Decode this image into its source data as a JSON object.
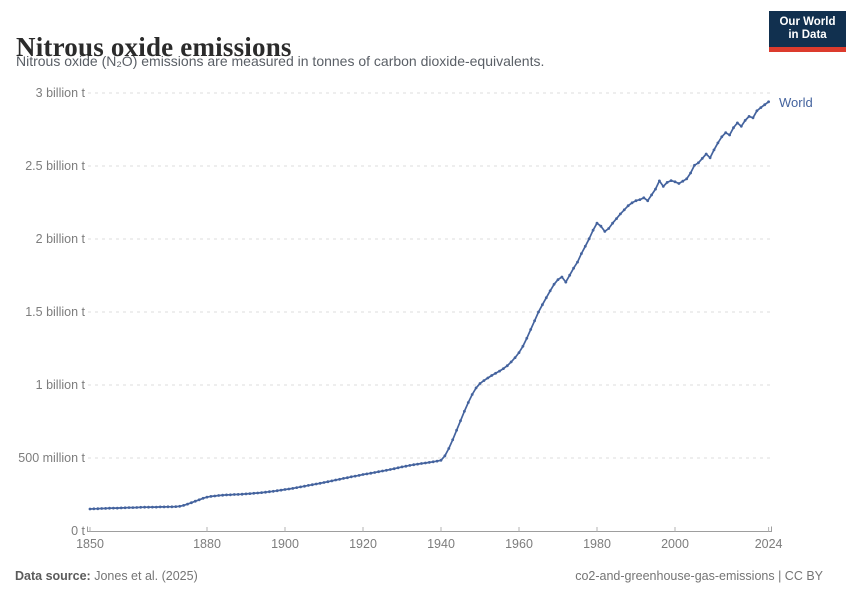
{
  "header": {
    "title": "Nitrous oxide emissions",
    "subtitle": "Nitrous oxide (N₂O) emissions are measured in tonnes of carbon dioxide-equivalents.",
    "logo_line1": "Our World",
    "logo_line2": "in Data"
  },
  "footer": {
    "source_label": "Data source:",
    "source_value": "Jones et al. (2025)",
    "attribution": "co2-and-greenhouse-gas-emissions | CC BY"
  },
  "chart_data": {
    "type": "line",
    "title": "Nitrous oxide emissions",
    "unit": "tonnes of carbon dioxide-equivalents",
    "values_unit": "million tonnes CO2e",
    "xlabel": "",
    "ylabel": "",
    "xlim": [
      1850,
      2024
    ],
    "ylim": [
      0,
      3000
    ],
    "grid": "horizontal dashed",
    "legend_position": "end-of-line label",
    "colors": {
      "line": "#44639e",
      "gridline": "#dedede",
      "axis": "#9e9e9e",
      "tick": "#b3b3b3",
      "tick_label": "#7d7d7d",
      "logo_navy": "#11304f",
      "logo_red": "#dc3b2d"
    },
    "y_ticks": [
      {
        "value": 0,
        "label": "0 t"
      },
      {
        "value": 500,
        "label": "500 million t"
      },
      {
        "value": 1000,
        "label": "1 billion t"
      },
      {
        "value": 1500,
        "label": "1.5 billion t"
      },
      {
        "value": 2000,
        "label": "2 billion t"
      },
      {
        "value": 2500,
        "label": "2.5 billion t"
      },
      {
        "value": 3000,
        "label": "3 billion t"
      }
    ],
    "x_ticks": [
      {
        "value": 1850,
        "label": "1850"
      },
      {
        "value": 1880,
        "label": "1880"
      },
      {
        "value": 1900,
        "label": "1900"
      },
      {
        "value": 1920,
        "label": "1920"
      },
      {
        "value": 1940,
        "label": "1940"
      },
      {
        "value": 1960,
        "label": "1960"
      },
      {
        "value": 1980,
        "label": "1980"
      },
      {
        "value": 2000,
        "label": "2000"
      },
      {
        "value": 2024,
        "label": "2024"
      }
    ],
    "series": [
      {
        "name": "World",
        "color": "#44639e",
        "marker": "dot",
        "years": [
          1850,
          1851,
          1852,
          1853,
          1854,
          1855,
          1856,
          1857,
          1858,
          1859,
          1860,
          1861,
          1862,
          1863,
          1864,
          1865,
          1866,
          1867,
          1868,
          1869,
          1870,
          1871,
          1872,
          1873,
          1874,
          1875,
          1876,
          1877,
          1878,
          1879,
          1880,
          1881,
          1882,
          1883,
          1884,
          1885,
          1886,
          1887,
          1888,
          1889,
          1890,
          1891,
          1892,
          1893,
          1894,
          1895,
          1896,
          1897,
          1898,
          1899,
          1900,
          1901,
          1902,
          1903,
          1904,
          1905,
          1906,
          1907,
          1908,
          1909,
          1910,
          1911,
          1912,
          1913,
          1914,
          1915,
          1916,
          1917,
          1918,
          1919,
          1920,
          1921,
          1922,
          1923,
          1924,
          1925,
          1926,
          1927,
          1928,
          1929,
          1930,
          1931,
          1932,
          1933,
          1934,
          1935,
          1936,
          1937,
          1938,
          1939,
          1940,
          1941,
          1942,
          1943,
          1944,
          1945,
          1946,
          1947,
          1948,
          1949,
          1950,
          1951,
          1952,
          1953,
          1954,
          1955,
          1956,
          1957,
          1958,
          1959,
          1960,
          1961,
          1962,
          1963,
          1964,
          1965,
          1966,
          1967,
          1968,
          1969,
          1970,
          1971,
          1972,
          1973,
          1974,
          1975,
          1976,
          1977,
          1978,
          1979,
          1980,
          1981,
          1982,
          1983,
          1984,
          1985,
          1986,
          1987,
          1988,
          1989,
          1990,
          1991,
          1992,
          1993,
          1994,
          1995,
          1996,
          1997,
          1998,
          1999,
          2000,
          2001,
          2002,
          2003,
          2004,
          2005,
          2006,
          2007,
          2008,
          2009,
          2010,
          2011,
          2012,
          2013,
          2014,
          2015,
          2016,
          2017,
          2018,
          2019,
          2020,
          2021,
          2022,
          2023,
          2024
        ],
        "values_million_t": [
          151,
          152,
          153,
          154,
          155,
          156,
          157,
          157,
          158,
          159,
          160,
          160,
          161,
          162,
          163,
          163,
          164,
          164,
          165,
          165,
          166,
          166,
          167,
          169,
          175,
          184,
          194,
          204,
          214,
          224,
          232,
          237,
          240,
          243,
          245,
          247,
          248,
          250,
          251,
          252,
          254,
          256,
          258,
          260,
          263,
          266,
          269,
          272,
          276,
          280,
          284,
          288,
          292,
          297,
          302,
          307,
          312,
          317,
          322,
          327,
          332,
          338,
          343,
          349,
          354,
          360,
          365,
          371,
          376,
          381,
          387,
          391,
          396,
          401,
          406,
          411,
          416,
          421,
          427,
          433,
          439,
          444,
          449,
          454,
          458,
          462,
          466,
          470,
          474,
          479,
          484,
          515,
          565,
          625,
          690,
          755,
          820,
          880,
          935,
          980,
          1010,
          1030,
          1048,
          1065,
          1080,
          1095,
          1112,
          1132,
          1158,
          1188,
          1222,
          1265,
          1320,
          1380,
          1440,
          1500,
          1550,
          1598,
          1645,
          1690,
          1722,
          1740,
          1705,
          1752,
          1800,
          1842,
          1900,
          1950,
          2002,
          2060,
          2108,
          2088,
          2052,
          2072,
          2108,
          2140,
          2172,
          2200,
          2228,
          2248,
          2262,
          2270,
          2282,
          2262,
          2302,
          2342,
          2398,
          2360,
          2388,
          2400,
          2392,
          2380,
          2396,
          2412,
          2452,
          2505,
          2522,
          2552,
          2582,
          2556,
          2610,
          2658,
          2700,
          2728,
          2712,
          2762,
          2795,
          2772,
          2812,
          2840,
          2830,
          2878,
          2900,
          2920,
          2940
        ]
      }
    ]
  }
}
